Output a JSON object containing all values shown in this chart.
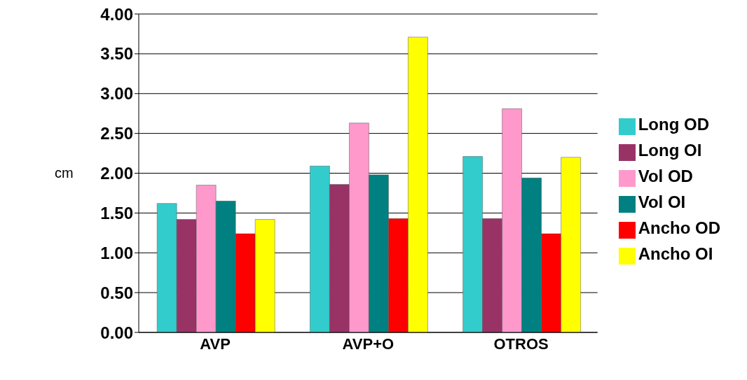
{
  "chart_data": {
    "type": "bar",
    "ylabel": "cm",
    "categories": [
      "AVP",
      "AVP+O",
      "OTROS"
    ],
    "series": [
      {
        "name": "Long OD",
        "color": "#33cccc",
        "values": [
          1.62,
          2.09,
          2.21
        ]
      },
      {
        "name": "Long OI",
        "color": "#993366",
        "values": [
          1.42,
          1.86,
          1.43
        ]
      },
      {
        "name": "Vol OD",
        "color": "#ff99cc",
        "values": [
          1.85,
          2.63,
          2.81
        ]
      },
      {
        "name": "Vol OI",
        "color": "#008080",
        "values": [
          1.65,
          1.98,
          1.94
        ]
      },
      {
        "name": "Ancho OD",
        "color": "#ff0000",
        "values": [
          1.24,
          1.43,
          1.24
        ]
      },
      {
        "name": "Ancho OI",
        "color": "#ffff00",
        "values": [
          1.42,
          3.71,
          2.2
        ]
      }
    ],
    "ylim": [
      0,
      4
    ],
    "yticks": [
      {
        "value": 0,
        "label": "0.00"
      },
      {
        "value": 0.5,
        "label": "0.50"
      },
      {
        "value": 1,
        "label": "1.00"
      },
      {
        "value": 1.5,
        "label": "1.50"
      },
      {
        "value": 2,
        "label": "2.00"
      },
      {
        "value": 2.5,
        "label": "2.50"
      },
      {
        "value": 3,
        "label": "3.00"
      },
      {
        "value": 3.5,
        "label": "3.50"
      },
      {
        "value": 4,
        "label": "4.00"
      }
    ],
    "grid": "y",
    "legend": "right"
  }
}
